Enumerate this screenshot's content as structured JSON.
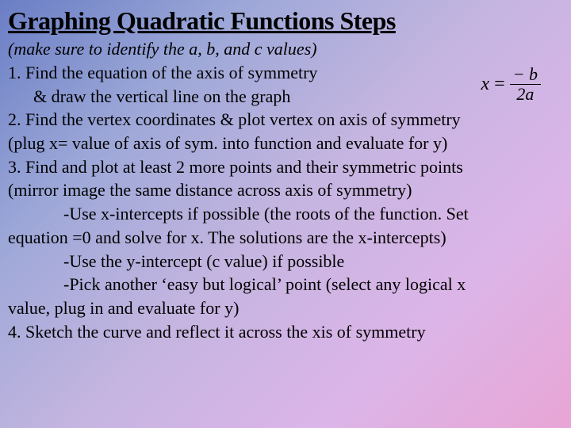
{
  "slide": {
    "title": "Graphing Quadratic Functions Steps",
    "subtitle": "(make sure to identify the a, b, and c values)",
    "step1_line1": "1. Find the equation of the axis of symmetry",
    "step1_line2": "& draw the vertical line on the graph",
    "formula": {
      "x": "x",
      "eq": "=",
      "numerator": "− b",
      "denominator": "2a"
    },
    "step2_line1": "2. Find the vertex coordinates & plot vertex on axis of symmetry",
    "step2_line2": "(plug x= value of axis of sym. into function and evaluate for y)",
    "step3_line1": "3. Find and plot at least 2 more points and their symmetric points",
    "step3_line2": "(mirror image the same distance across axis of symmetry)",
    "step3_bullet1a": "-Use x-intercepts if possible (the roots of the function. Set",
    "step3_bullet1b": "equation =0 and solve for x. The solutions are the x-intercepts)",
    "step3_bullet2": "-Use the y-intercept (c value) if possible",
    "step3_bullet3a": "-Pick another ‘easy but logical’ point (select any logical x",
    "step3_bullet3b": "value, plug in and evaluate for y)",
    "step4": "4. Sketch the curve and reflect it across the xis of symmetry"
  },
  "style": {
    "title_fontsize": 32,
    "body_fontsize": 22,
    "text_color": "#000000",
    "bg_gradient_start": "#6a7ec5",
    "bg_gradient_end": "#e8a5d5"
  }
}
